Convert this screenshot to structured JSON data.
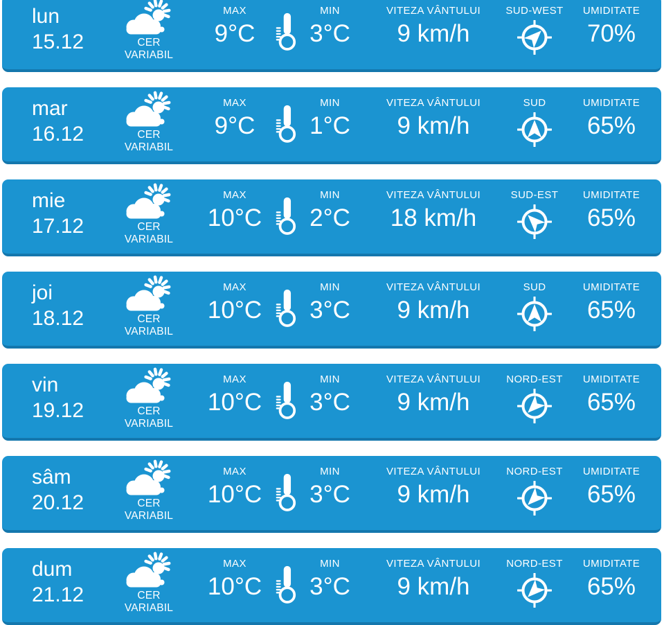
{
  "widget": {
    "type": "weather-forecast",
    "language": "ro"
  },
  "colors": {
    "row_background": "#1b94d1",
    "row_bottom_border": "#1477ad",
    "text": "#ffffff",
    "page_background": "#ffffff"
  },
  "labels": {
    "max": "MAX",
    "min": "MIN",
    "wind": "VITEZA VÂNTULUI",
    "humidity": "UMIDITATE"
  },
  "icons": {
    "condition": "partly-cloudy-icon",
    "temperature": "thermometer-icon",
    "wind": "compass-icon"
  },
  "rows": [
    {
      "day": "lun",
      "date": "15.12",
      "condition": [
        "CER",
        "VARIABIL"
      ],
      "max": "9°C",
      "min": "3°C",
      "wind_speed": "9 km/h",
      "wind_direction": "SUD-WEST",
      "wind_rotation": 45,
      "humidity": "70%"
    },
    {
      "day": "mar",
      "date": "16.12",
      "condition": [
        "CER",
        "VARIABIL"
      ],
      "max": "9°C",
      "min": "1°C",
      "wind_speed": "9 km/h",
      "wind_direction": "SUD",
      "wind_rotation": 0,
      "humidity": "65%"
    },
    {
      "day": "mie",
      "date": "17.12",
      "condition": [
        "CER",
        "VARIABIL"
      ],
      "max": "10°C",
      "min": "2°C",
      "wind_speed": "18 km/h",
      "wind_direction": "SUD-EST",
      "wind_rotation": 315,
      "humidity": "65%"
    },
    {
      "day": "joi",
      "date": "18.12",
      "condition": [
        "CER",
        "VARIABIL"
      ],
      "max": "10°C",
      "min": "3°C",
      "wind_speed": "9 km/h",
      "wind_direction": "SUD",
      "wind_rotation": 0,
      "humidity": "65%"
    },
    {
      "day": "vin",
      "date": "19.12",
      "condition": [
        "CER",
        "VARIABIL"
      ],
      "max": "10°C",
      "min": "3°C",
      "wind_speed": "9 km/h",
      "wind_direction": "NORD-EST",
      "wind_rotation": 225,
      "humidity": "65%"
    },
    {
      "day": "sâm",
      "date": "20.12",
      "condition": [
        "CER",
        "VARIABIL"
      ],
      "max": "10°C",
      "min": "3°C",
      "wind_speed": "9 km/h",
      "wind_direction": "NORD-EST",
      "wind_rotation": 225,
      "humidity": "65%"
    },
    {
      "day": "dum",
      "date": "21.12",
      "condition": [
        "CER",
        "VARIABIL"
      ],
      "max": "10°C",
      "min": "3°C",
      "wind_speed": "9 km/h",
      "wind_direction": "NORD-EST",
      "wind_rotation": 225,
      "humidity": "65%"
    }
  ]
}
